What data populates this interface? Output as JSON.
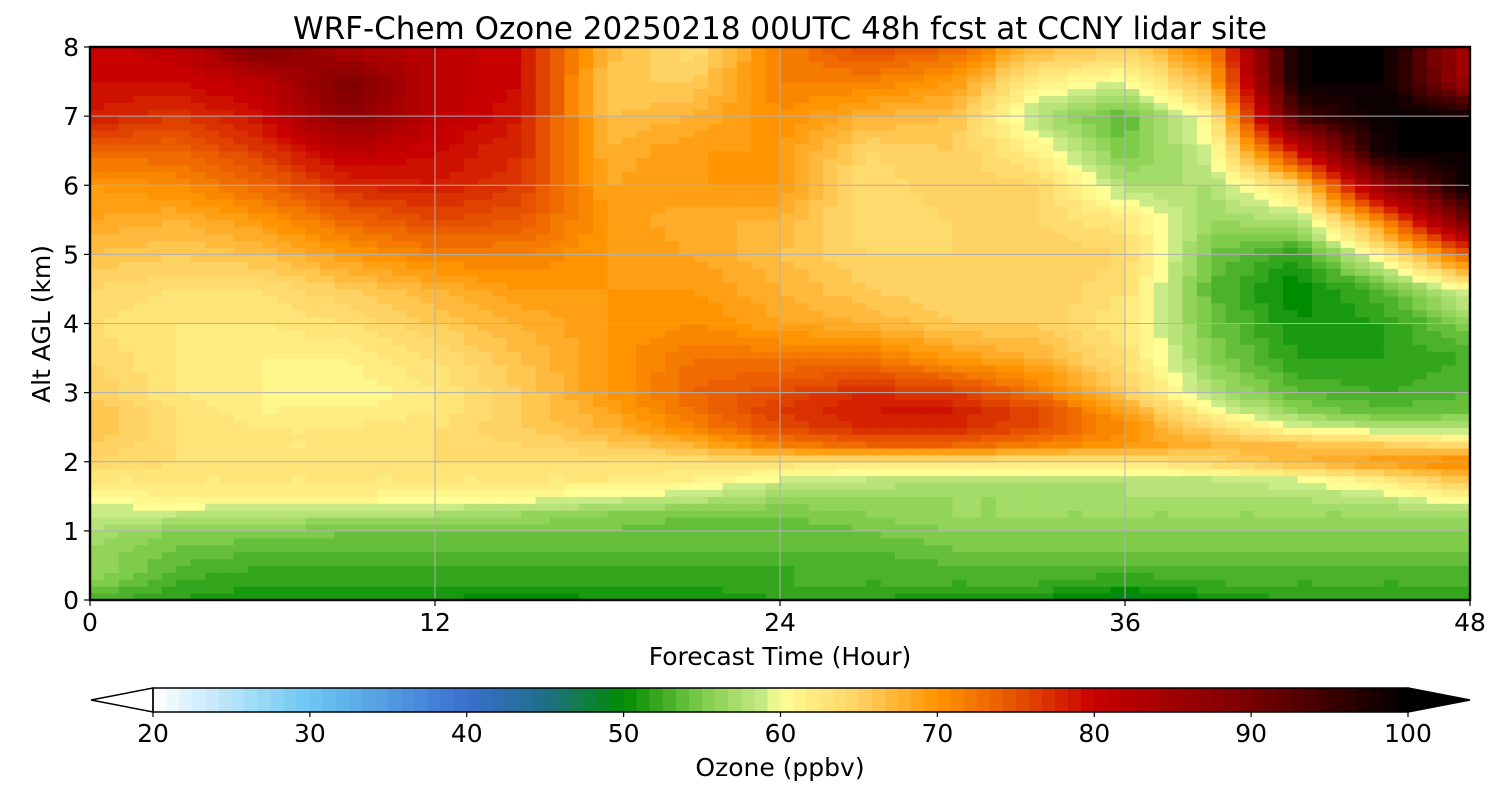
{
  "chart_data": {
    "type": "heatmap",
    "title": "WRF-Chem Ozone  20250218 00UTC 48h fcst at CCNY lidar site",
    "xlabel": "Forecast Time (Hour)",
    "ylabel": "Alt AGL (km)",
    "xlim": [
      0,
      48
    ],
    "ylim": [
      0,
      8
    ],
    "xticks": [
      0,
      12,
      24,
      36,
      48
    ],
    "yticks": [
      0,
      1,
      2,
      3,
      4,
      5,
      6,
      7,
      8
    ],
    "grid": true,
    "x": [
      0,
      3,
      6,
      9,
      12,
      15,
      18,
      21,
      24,
      27,
      30,
      33,
      36,
      39,
      42,
      45,
      48
    ],
    "y": [
      0.0,
      0.25,
      0.5,
      0.75,
      1.0,
      1.25,
      1.5,
      1.75,
      2.0,
      2.25,
      2.5,
      2.75,
      3.0,
      3.5,
      4.0,
      4.5,
      5.0,
      5.5,
      6.0,
      6.5,
      7.0,
      7.5,
      8.0
    ],
    "z": [
      [
        53,
        52,
        51,
        51,
        51,
        50,
        51,
        51,
        52,
        52,
        51,
        51,
        49,
        51,
        52,
        52,
        52
      ],
      [
        56,
        53,
        52,
        52,
        52,
        52,
        52,
        52,
        53,
        53,
        53,
        53,
        52,
        53,
        53,
        53,
        53
      ],
      [
        57,
        54,
        53,
        53,
        53,
        53,
        53,
        53,
        53,
        53,
        54,
        54,
        54,
        54,
        54,
        54,
        54
      ],
      [
        57,
        55,
        54,
        54,
        54,
        54,
        54,
        54,
        54,
        54,
        55,
        55,
        55,
        55,
        55,
        55,
        55
      ],
      [
        58,
        56,
        56,
        55,
        55,
        55,
        55,
        54,
        54,
        55,
        56,
        56,
        56,
        56,
        56,
        56,
        56
      ],
      [
        59,
        59,
        58,
        58,
        58,
        57,
        56,
        55,
        55,
        56,
        57,
        57,
        57,
        57,
        57,
        57,
        57
      ],
      [
        61,
        62,
        62,
        62,
        61,
        61,
        60,
        59,
        57,
        57,
        57,
        57,
        58,
        58,
        58,
        59,
        62
      ],
      [
        63,
        63,
        63,
        63,
        63,
        63,
        63,
        62,
        60,
        59,
        58,
        58,
        58,
        59,
        60,
        63,
        67
      ],
      [
        65,
        64,
        64,
        64,
        64,
        64,
        64,
        64,
        64,
        63,
        63,
        63,
        63,
        65,
        68,
        70,
        72
      ],
      [
        66,
        64,
        63,
        63,
        64,
        65,
        66,
        68,
        72,
        74,
        74,
        72,
        70,
        68,
        67,
        66,
        64
      ],
      [
        67,
        64,
        63,
        63,
        64,
        66,
        68,
        72,
        76,
        78,
        78,
        76,
        71,
        65,
        60,
        58,
        58
      ],
      [
        67,
        64,
        62,
        62,
        63,
        66,
        69,
        73,
        77,
        79,
        79,
        76,
        69,
        61,
        56,
        54,
        55
      ],
      [
        66,
        63,
        62,
        61,
        63,
        66,
        70,
        74,
        76,
        78,
        77,
        73,
        66,
        58,
        54,
        53,
        54
      ],
      [
        65,
        63,
        62,
        62,
        64,
        67,
        70,
        73,
        73,
        73,
        70,
        68,
        64,
        56,
        52,
        52,
        53
      ],
      [
        64,
        63,
        63,
        64,
        66,
        68,
        70,
        71,
        69,
        68,
        66,
        66,
        63,
        55,
        51,
        52,
        56
      ],
      [
        65,
        64,
        64,
        66,
        68,
        70,
        70,
        70,
        68,
        66,
        65,
        66,
        64,
        54,
        50,
        54,
        61
      ],
      [
        67,
        66,
        67,
        70,
        72,
        72,
        70,
        69,
        67,
        65,
        65,
        66,
        65,
        55,
        52,
        62,
        75
      ],
      [
        69,
        68,
        70,
        74,
        76,
        75,
        70,
        68,
        68,
        64,
        65,
        65,
        63,
        57,
        58,
        72,
        92
      ],
      [
        70,
        71,
        74,
        78,
        79,
        77,
        69,
        70,
        70,
        64,
        66,
        65,
        58,
        58,
        65,
        88,
        100
      ],
      [
        74,
        74,
        77,
        82,
        80,
        78,
        68,
        70,
        70,
        65,
        66,
        62,
        55,
        60,
        80,
        100,
        100
      ],
      [
        79,
        77,
        80,
        88,
        82,
        79,
        67,
        68,
        71,
        68,
        67,
        58,
        54,
        62,
        95,
        100,
        100
      ],
      [
        80,
        80,
        82,
        90,
        82,
        80,
        66,
        66,
        72,
        72,
        70,
        62,
        60,
        68,
        100,
        100,
        85
      ],
      [
        80,
        82,
        90,
        84,
        82,
        80,
        68,
        64,
        72,
        76,
        74,
        68,
        66,
        72,
        100,
        100,
        84
      ]
    ],
    "colorbar": {
      "label": "Ozone  (ppbv)",
      "min": 20,
      "max": 100,
      "ticks": [
        20,
        30,
        40,
        50,
        60,
        70,
        80,
        90,
        100
      ],
      "extend": "both",
      "stops": [
        {
          "v": 20,
          "c": "#ffffff"
        },
        {
          "v": 30,
          "c": "#6cc7f2"
        },
        {
          "v": 40,
          "c": "#3a6fcf"
        },
        {
          "v": 45,
          "c": "#1f6f88"
        },
        {
          "v": 50,
          "c": "#008c00"
        },
        {
          "v": 55,
          "c": "#7fcc4a"
        },
        {
          "v": 59,
          "c": "#c9eb88"
        },
        {
          "v": 60,
          "c": "#ffff96"
        },
        {
          "v": 65,
          "c": "#ffd264"
        },
        {
          "v": 70,
          "c": "#ff9400"
        },
        {
          "v": 75,
          "c": "#e65200"
        },
        {
          "v": 80,
          "c": "#c80000"
        },
        {
          "v": 90,
          "c": "#780000"
        },
        {
          "v": 100,
          "c": "#000000"
        }
      ]
    }
  }
}
